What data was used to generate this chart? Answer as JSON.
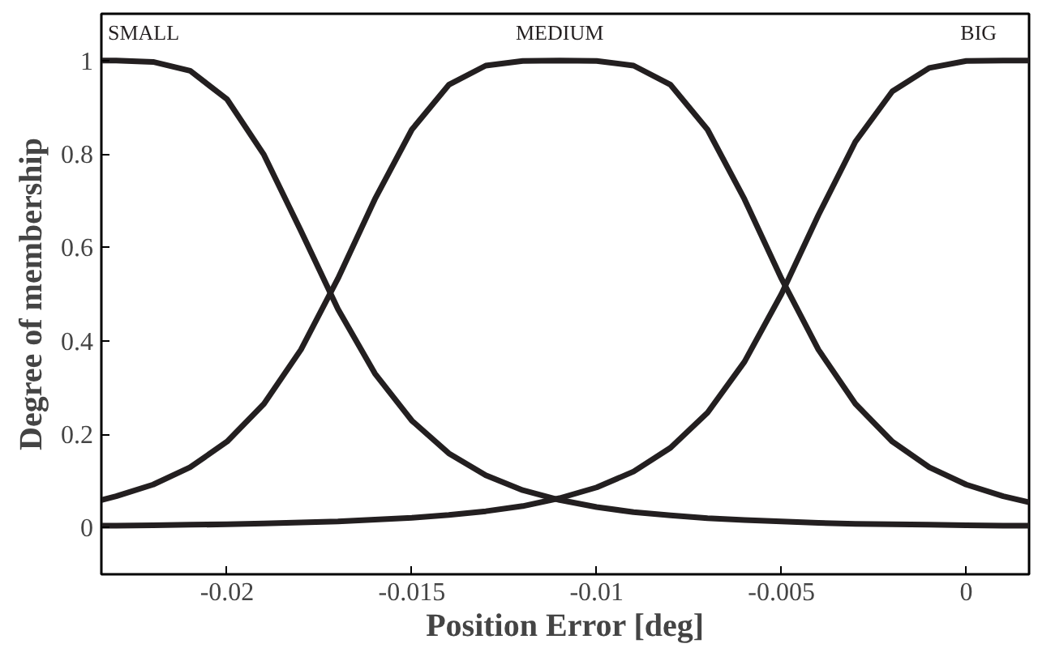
{
  "chart_data": {
    "type": "line",
    "xlabel": "Position Error [deg]",
    "ylabel": "Degree of membership",
    "x": [
      -0.0234,
      -0.023,
      -0.022,
      -0.021,
      -0.02,
      -0.019,
      -0.018,
      -0.017,
      -0.016,
      -0.015,
      -0.014,
      -0.013,
      -0.012,
      -0.011,
      -0.01,
      -0.009,
      -0.008,
      -0.007,
      -0.006,
      -0.005,
      -0.004,
      -0.003,
      -0.002,
      -0.001,
      0,
      0.001,
      0.0017
    ],
    "series": [
      {
        "name": "SMALL",
        "color": "#231f20",
        "values": [
          1,
          1,
          0.997,
          0.978,
          0.917,
          0.798,
          0.635,
          0.468,
          0.33,
          0.229,
          0.159,
          0.112,
          0.08,
          0.059,
          0.044,
          0.033,
          0.026,
          0.02,
          0.016,
          0.013,
          0.01,
          0.008,
          0.007,
          0.006,
          0.005,
          0.004,
          0.004
        ]
      },
      {
        "name": "MEDIUM",
        "color": "#231f20",
        "values": [
          0.059,
          0.067,
          0.092,
          0.129,
          0.184,
          0.265,
          0.381,
          0.533,
          0.703,
          0.852,
          0.948,
          0.989,
          0.999,
          1,
          0.999,
          0.989,
          0.948,
          0.852,
          0.703,
          0.533,
          0.381,
          0.265,
          0.184,
          0.129,
          0.092,
          0.067,
          0.054
        ]
      },
      {
        "name": "BIG",
        "color": "#231f20",
        "values": [
          0.004,
          0.004,
          0.005,
          0.006,
          0.007,
          0.009,
          0.011,
          0.013,
          0.017,
          0.021,
          0.027,
          0.035,
          0.046,
          0.063,
          0.086,
          0.12,
          0.171,
          0.246,
          0.355,
          0.5,
          0.669,
          0.826,
          0.934,
          0.984,
          0.999,
          1,
          1
        ]
      }
    ],
    "xlim": [
      -0.0234,
      0.0017
    ],
    "ylim": [
      -0.1,
      1.1
    ],
    "xticks": [
      -0.02,
      -0.015,
      -0.01,
      -0.005,
      0
    ],
    "yticks": [
      0,
      0.2,
      0.4,
      0.6,
      0.8,
      1
    ],
    "grid": false,
    "marker": "none",
    "line_style": "solid"
  }
}
